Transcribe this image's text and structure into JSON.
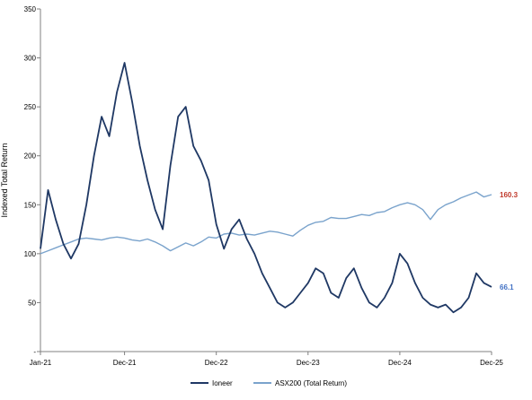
{
  "chart_data": {
    "type": "line",
    "title": "",
    "xlabel": "",
    "ylabel": "Indexed Total Return",
    "ylim": [
      0,
      350
    ],
    "yticks": [
      "-",
      "50",
      "100",
      "150",
      "200",
      "250",
      "300",
      "350"
    ],
    "ytick_values": [
      0,
      50,
      100,
      150,
      200,
      250,
      300,
      350
    ],
    "xticks": [
      "Jan-21",
      "Dec-21",
      "Dec-22",
      "Dec-23",
      "Dec-24",
      "Dec-25"
    ],
    "xtick_values": [
      "2021-01",
      "2021-12",
      "2022-12",
      "2023-12",
      "2024-12",
      "2025-12"
    ],
    "xlim": [
      "2021-01",
      "2025-12"
    ],
    "grid": false,
    "legend_position": "bottom",
    "series": [
      {
        "name": "Ioneer",
        "color": "#1f3864",
        "end_label": "66.1",
        "end_label_color": "#4472c4",
        "x": [
          "2021-01",
          "2021-02",
          "2021-03",
          "2021-04",
          "2021-05",
          "2021-06",
          "2021-07",
          "2021-08",
          "2021-09",
          "2021-10",
          "2021-11",
          "2021-12",
          "2022-01",
          "2022-02",
          "2022-03",
          "2022-04",
          "2022-05",
          "2022-06",
          "2022-07",
          "2022-08",
          "2022-09",
          "2022-10",
          "2022-11",
          "2022-12",
          "2023-01",
          "2023-02",
          "2023-03",
          "2023-04",
          "2023-05",
          "2023-06",
          "2023-07",
          "2023-08",
          "2023-09",
          "2023-10",
          "2023-11",
          "2023-12",
          "2024-01",
          "2024-02",
          "2024-03",
          "2024-04",
          "2024-05",
          "2024-06",
          "2024-07",
          "2024-08",
          "2024-09",
          "2024-10",
          "2024-11",
          "2024-12",
          "2025-01",
          "2025-02",
          "2025-03",
          "2025-04",
          "2025-05",
          "2025-06",
          "2025-07",
          "2025-08",
          "2025-09",
          "2025-10",
          "2025-11",
          "2025-12"
        ],
        "values": [
          105,
          165,
          135,
          110,
          95,
          110,
          150,
          200,
          240,
          220,
          265,
          295,
          255,
          210,
          175,
          145,
          125,
          190,
          240,
          250,
          210,
          195,
          175,
          130,
          105,
          125,
          135,
          115,
          100,
          80,
          65,
          50,
          45,
          50,
          60,
          70,
          85,
          80,
          60,
          55,
          75,
          85,
          65,
          50,
          45,
          55,
          70,
          100,
          90,
          70,
          55,
          48,
          45,
          48,
          40,
          45,
          55,
          80,
          70,
          66.1
        ]
      },
      {
        "name": "ASX200 (Total Return)",
        "color": "#7aa3cc",
        "end_label": "160.3",
        "end_label_color": "#c0392b",
        "x": [
          "2021-01",
          "2021-02",
          "2021-03",
          "2021-04",
          "2021-05",
          "2021-06",
          "2021-07",
          "2021-08",
          "2021-09",
          "2021-10",
          "2021-11",
          "2021-12",
          "2022-01",
          "2022-02",
          "2022-03",
          "2022-04",
          "2022-05",
          "2022-06",
          "2022-07",
          "2022-08",
          "2022-09",
          "2022-10",
          "2022-11",
          "2022-12",
          "2023-01",
          "2023-02",
          "2023-03",
          "2023-04",
          "2023-05",
          "2023-06",
          "2023-07",
          "2023-08",
          "2023-09",
          "2023-10",
          "2023-11",
          "2023-12",
          "2024-01",
          "2024-02",
          "2024-03",
          "2024-04",
          "2024-05",
          "2024-06",
          "2024-07",
          "2024-08",
          "2024-09",
          "2024-10",
          "2024-11",
          "2024-12",
          "2025-01",
          "2025-02",
          "2025-03",
          "2025-04",
          "2025-05",
          "2025-06",
          "2025-07",
          "2025-08",
          "2025-09",
          "2025-10",
          "2025-11",
          "2025-12"
        ],
        "values": [
          100,
          103,
          106,
          109,
          112,
          115,
          116,
          115,
          114,
          116,
          117,
          116,
          114,
          113,
          115,
          112,
          108,
          103,
          107,
          111,
          108,
          112,
          117,
          116,
          120,
          121,
          119,
          120,
          119,
          121,
          123,
          122,
          120,
          118,
          124,
          129,
          132,
          133,
          137,
          136,
          136,
          138,
          140,
          139,
          142,
          143,
          147,
          150,
          152,
          150,
          145,
          135,
          145,
          150,
          153,
          157,
          160,
          163,
          158,
          160.3
        ]
      }
    ]
  }
}
